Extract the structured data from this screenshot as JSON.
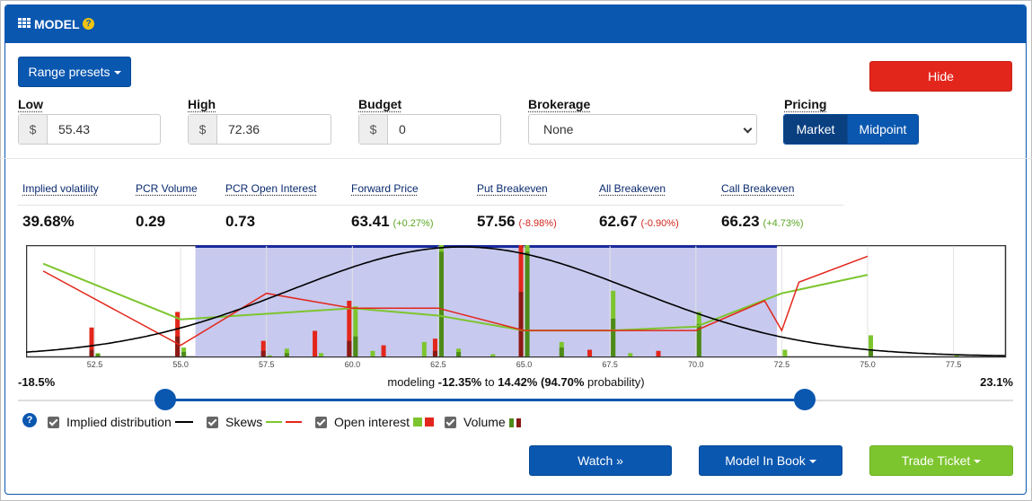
{
  "header": {
    "title": "MODEL",
    "help": "?"
  },
  "controls": {
    "range_presets": "Range presets",
    "hide": "Hide",
    "low": {
      "label": "Low",
      "addon": "$",
      "value": "55.43"
    },
    "high": {
      "label": "High",
      "addon": "$",
      "value": "72.36"
    },
    "budget": {
      "label": "Budget",
      "addon": "$",
      "value": "0"
    },
    "brokerage": {
      "label": "Brokerage",
      "value": "None"
    },
    "pricing": {
      "label": "Pricing",
      "options": [
        "Market",
        "Midpoint"
      ],
      "selected": "Market"
    }
  },
  "stats": [
    {
      "label": "Implied volatility",
      "value": "39.68%",
      "change": ""
    },
    {
      "label": "PCR Volume",
      "value": "0.29",
      "change": ""
    },
    {
      "label": "PCR Open Interest",
      "value": "0.73",
      "change": ""
    },
    {
      "label": "Forward Price",
      "value": "63.41",
      "change": "(+0.27%)"
    },
    {
      "label": "Put Breakeven",
      "value": "57.56",
      "change": "(-8.98%)"
    },
    {
      "label": "All Breakeven",
      "value": "62.67",
      "change": "(-0.90%)"
    },
    {
      "label": "Call Breakeven",
      "value": "66.23",
      "change": "(+4.73%)"
    }
  ],
  "chart_data": {
    "type": "bar",
    "x_ticks": [
      "52.5",
      "55.0",
      "57.5",
      "60.0",
      "62.5",
      "65.0",
      "67.5",
      "70.0",
      "72.5",
      "75.0",
      "77.5"
    ],
    "xlim": [
      50.5,
      79.0
    ],
    "selected_range": [
      55.43,
      72.36
    ],
    "implied_distribution": {
      "mean": 63.2,
      "sd": 5.0
    },
    "skews": {
      "call": [
        [
          51.0,
          0.2
        ],
        [
          55.0,
          0.35
        ],
        [
          60.0,
          0.32
        ],
        [
          62.5,
          0.34
        ],
        [
          65.0,
          0.38
        ],
        [
          67.5,
          0.38
        ],
        [
          70.0,
          0.37
        ],
        [
          72.5,
          0.28
        ],
        [
          75.0,
          0.23
        ]
      ],
      "put": [
        [
          51.0,
          0.22
        ],
        [
          55.0,
          0.42
        ],
        [
          57.5,
          0.28
        ],
        [
          60.0,
          0.32
        ],
        [
          62.5,
          0.32
        ],
        [
          65.0,
          0.38
        ],
        [
          67.5,
          0.38
        ],
        [
          70.0,
          0.38
        ],
        [
          72.0,
          0.3
        ],
        [
          72.5,
          0.38
        ],
        [
          73.0,
          0.25
        ],
        [
          75.0,
          0.18
        ]
      ]
    },
    "volume_scale_max": 100,
    "call_open_interest": [
      [
        52.5,
        3
      ],
      [
        55.0,
        8
      ],
      [
        57.5,
        1
      ],
      [
        58.0,
        7
      ],
      [
        59.0,
        3
      ],
      [
        60.0,
        45
      ],
      [
        60.5,
        5
      ],
      [
        62.0,
        13
      ],
      [
        62.5,
        100
      ],
      [
        63.0,
        7
      ],
      [
        64.0,
        2
      ],
      [
        65.0,
        100
      ],
      [
        66.0,
        13
      ],
      [
        67.5,
        59
      ],
      [
        68.0,
        3
      ],
      [
        70.0,
        40
      ],
      [
        72.5,
        6
      ],
      [
        75.0,
        19
      ],
      [
        77.5,
        1
      ]
    ],
    "call_volume": [
      [
        52.5,
        2
      ],
      [
        55.0,
        4
      ],
      [
        58.0,
        3
      ],
      [
        60.0,
        18
      ],
      [
        62.5,
        94
      ],
      [
        63.0,
        4
      ],
      [
        65.0,
        94
      ],
      [
        66.0,
        8
      ],
      [
        67.5,
        34
      ],
      [
        70.0,
        29
      ],
      [
        75.0,
        5
      ]
    ],
    "put_open_interest": [
      [
        52.5,
        26
      ],
      [
        55.0,
        40
      ],
      [
        57.5,
        14
      ],
      [
        59.0,
        23
      ],
      [
        60.0,
        50
      ],
      [
        61.0,
        10
      ],
      [
        62.5,
        16
      ],
      [
        65.0,
        100
      ],
      [
        67.0,
        6
      ],
      [
        69.0,
        5
      ]
    ],
    "put_volume": [
      [
        52.5,
        6
      ],
      [
        55.0,
        18
      ],
      [
        57.5,
        5
      ],
      [
        60.0,
        14
      ],
      [
        62.5,
        5
      ],
      [
        65.0,
        58
      ]
    ]
  },
  "range": {
    "left": "-18.5%",
    "right": "23.1%",
    "modeling_prefix": "modeling",
    "low_pct": "-12.35%",
    "to": "to",
    "high_pct": "14.42%",
    "prob": "(94.70%",
    "prob_suffix": "probability)"
  },
  "legend": {
    "help": "?",
    "items": [
      "Implied distribution",
      "Skews",
      "Open interest",
      "Volume"
    ]
  },
  "colors": {
    "primary": "#0a57b0",
    "green": "#7dc52e",
    "red": "#e3261b",
    "dark_green": "#4e8a1a",
    "dark_red": "#8b1a14"
  },
  "actions": {
    "watch": "Watch »",
    "model_in_book": "Model In Book",
    "trade_ticket": "Trade Ticket"
  }
}
